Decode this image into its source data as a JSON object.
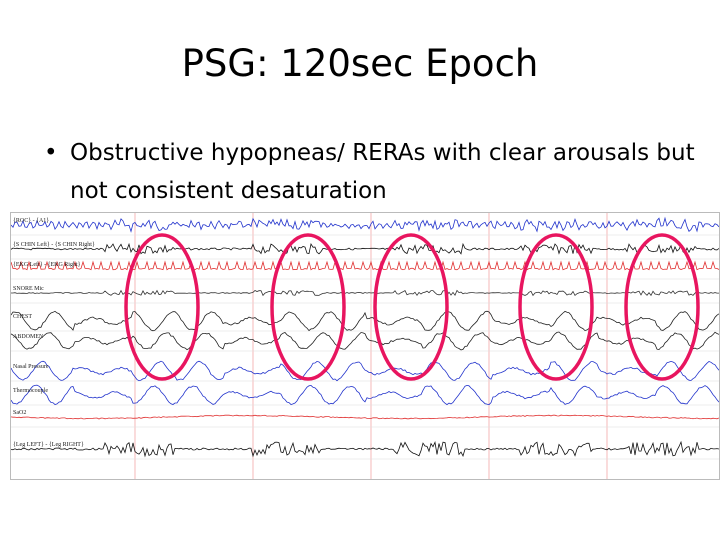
{
  "slide": {
    "title": "PSG: 120sec Epoch",
    "bullet": "Obstructive hypopneas/ RERAs with clear arousals but not consistent desaturation",
    "bullet_symbol": "•"
  },
  "psg": {
    "channels": [
      {
        "label": "{ROC} - {A1}",
        "color": "#2233cc",
        "type": "eeg"
      },
      {
        "label": "{S CHIN Left} - {S CHIN Right}",
        "color": "#111111",
        "type": "emg"
      },
      {
        "label": "{EKG Left} - {EKG Right}",
        "color": "#e03030",
        "type": "ekg"
      },
      {
        "label": "SNORE Mic",
        "color": "#333333",
        "type": "snore"
      },
      {
        "label": "CHEST",
        "color": "#222222",
        "type": "resp"
      },
      {
        "label": "ABDOMEN",
        "color": "#222222",
        "type": "resp"
      },
      {
        "label": "Nasal Pressure",
        "color": "#2233cc",
        "type": "resp"
      },
      {
        "label": "Thermocouple",
        "color": "#2233cc",
        "type": "resp"
      },
      {
        "label": "SaO2",
        "color": "#e03030",
        "type": "sat"
      },
      {
        "label": "{Leg LEFT} - {Leg RIGHT}",
        "color": "#111111",
        "type": "leg"
      }
    ],
    "highlight_color": "#e8155f",
    "event_count": 5
  }
}
